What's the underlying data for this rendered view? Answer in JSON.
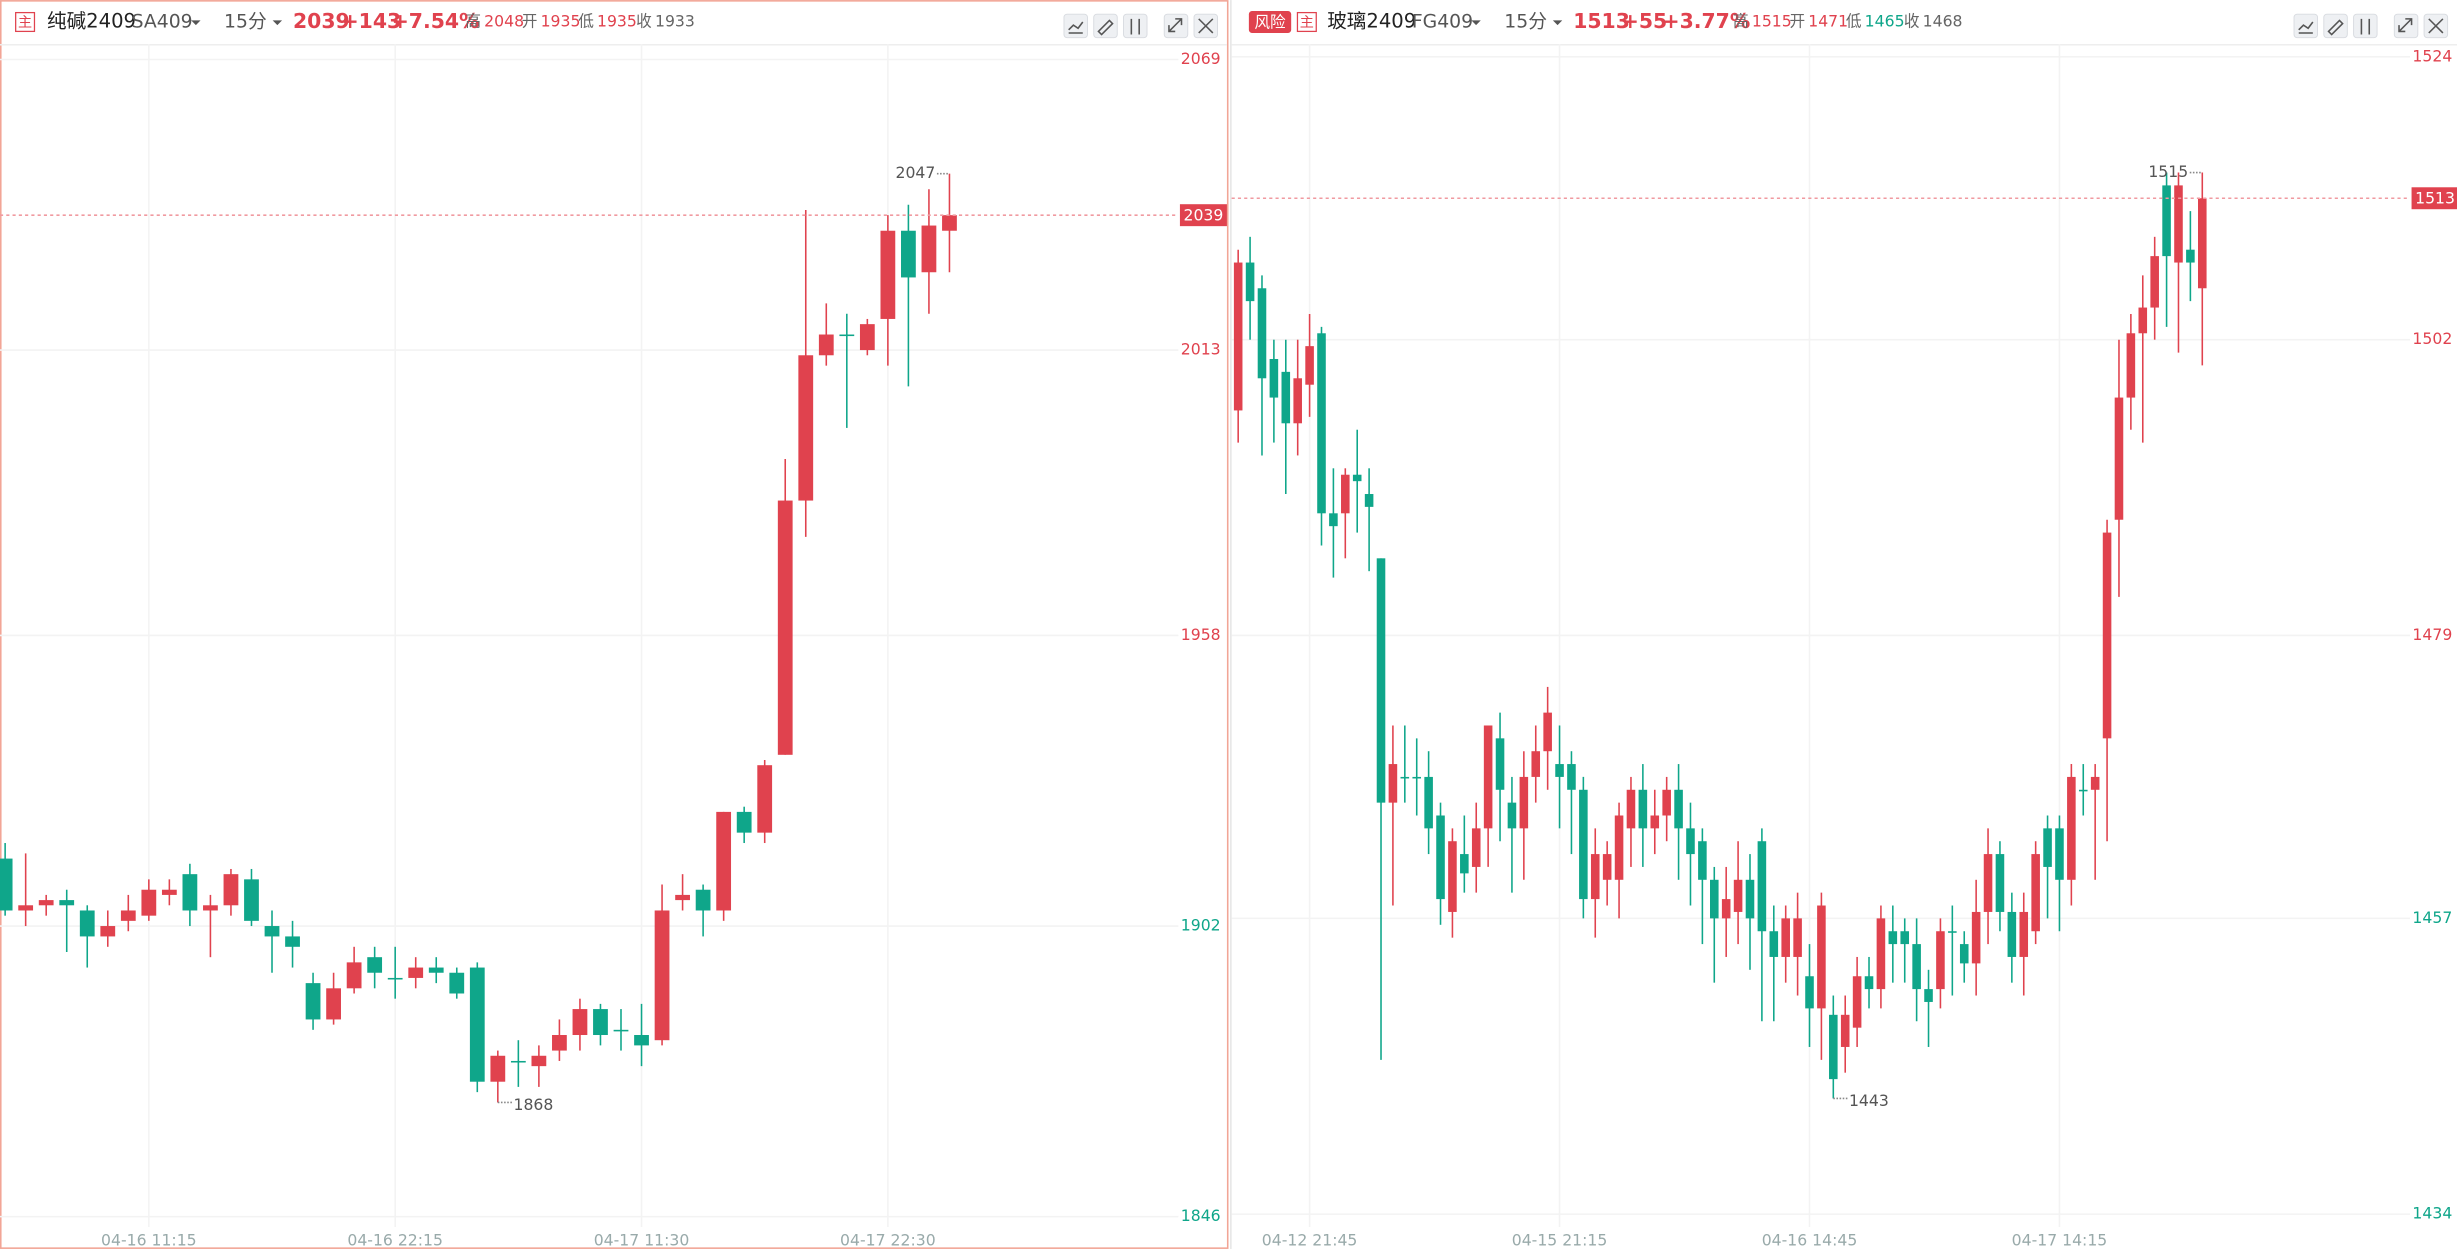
{
  "chart_data": [
    {
      "type": "candlestick",
      "header": {
        "tag": "主",
        "name": "纯碱2409",
        "code": "SA409",
        "period": "15分",
        "last": 2039,
        "change": "+143",
        "change_pct": "+7.54%",
        "stats": [
          {
            "label": "高",
            "value": 2048
          },
          {
            "label": "开",
            "value": 1935
          },
          {
            "label": "低",
            "value": 1935
          },
          {
            "label": "收",
            "value": 1933
          }
        ]
      },
      "categories": [
        null,
        null,
        null,
        null,
        null,
        null,
        null,
        "04-16 11:15",
        null,
        null,
        null,
        null,
        null,
        null,
        null,
        null,
        null,
        null,
        null,
        "04-16 22:15",
        null,
        null,
        null,
        null,
        null,
        null,
        null,
        null,
        null,
        null,
        null,
        "04-17 11:30",
        null,
        null,
        null,
        null,
        null,
        null,
        null,
        null,
        null,
        null,
        null,
        "04-17 22:30",
        null,
        null,
        null
      ],
      "open": [
        1915,
        1905,
        1906,
        1907,
        1905,
        1900,
        1903,
        1904,
        1908,
        1912,
        1905,
        1906,
        1911,
        1902,
        1900,
        1891,
        1884,
        1890,
        1896,
        1892,
        1892,
        1894,
        1893,
        1894,
        1872,
        1876,
        1875,
        1878,
        1881,
        1886,
        1882,
        1881,
        1880,
        1907,
        1909,
        1905,
        1924,
        1920,
        1935,
        1984,
        2012,
        2016,
        2013,
        2019,
        2036,
        2028,
        2036
      ],
      "high": [
        1918,
        1916,
        1908,
        1909,
        1906,
        1905,
        1908,
        1911,
        1911,
        1914,
        1908,
        1913,
        1913,
        1905,
        1903,
        1893,
        1893,
        1898,
        1898,
        1898,
        1896,
        1896,
        1894,
        1895,
        1878,
        1880,
        1879,
        1884,
        1888,
        1887,
        1886,
        1887,
        1910,
        1912,
        1910,
        1924,
        1925,
        1934,
        1992,
        2040,
        2022,
        2020,
        2019,
        2039,
        2041,
        2044,
        2047
      ],
      "low": [
        1904,
        1902,
        1904,
        1897,
        1894,
        1898,
        1901,
        1903,
        1906,
        1902,
        1896,
        1904,
        1902,
        1893,
        1894,
        1882,
        1883,
        1889,
        1890,
        1888,
        1890,
        1891,
        1888,
        1870,
        1868,
        1871,
        1871,
        1876,
        1878,
        1879,
        1878,
        1875,
        1879,
        1905,
        1900,
        1903,
        1918,
        1918,
        1935,
        1977,
        2010,
        1998,
        2012,
        2010,
        2006,
        2020,
        2028
      ],
      "close": [
        1905,
        1906,
        1907,
        1906,
        1900,
        1902,
        1905,
        1909,
        1909,
        1905,
        1906,
        1912,
        1903,
        1900,
        1898,
        1884,
        1890,
        1895,
        1893,
        1892,
        1894,
        1893,
        1889,
        1872,
        1877,
        1876,
        1877,
        1881,
        1886,
        1881,
        1882,
        1879,
        1905,
        1908,
        1905,
        1924,
        1920,
        1933,
        1984,
        2012,
        2016,
        2016,
        2018,
        2036,
        2027,
        2037,
        2039
      ],
      "ylim": [
        1844,
        2072
      ],
      "yticks": [
        1846,
        1902,
        1958,
        2013,
        2069
      ],
      "grid": true,
      "high_mark": 2047,
      "low_mark": 1868,
      "up_color": "#e0424e",
      "down_color": "#0fa68a"
    },
    {
      "type": "candlestick",
      "header": {
        "badge": "风险",
        "tag": "主",
        "name": "玻璃2409",
        "code": "FG409",
        "period": "15分",
        "last": 1513,
        "change": "+55",
        "change_pct": "+3.77%",
        "stats": [
          {
            "label": "高",
            "value": 1515
          },
          {
            "label": "开",
            "value": 1471
          },
          {
            "label": "低",
            "value": 1465
          },
          {
            "label": "收",
            "value": 1468
          }
        ]
      },
      "categories": [
        null,
        null,
        null,
        null,
        null,
        null,
        "04-12 21:45",
        null,
        null,
        null,
        null,
        null,
        null,
        null,
        null,
        null,
        null,
        null,
        null,
        null,
        null,
        null,
        null,
        null,
        null,
        null,
        null,
        "04-15 21:15",
        null,
        null,
        null,
        null,
        null,
        null,
        null,
        null,
        null,
        null,
        null,
        null,
        null,
        null,
        null,
        null,
        null,
        null,
        null,
        null,
        "04-16 14:45",
        null,
        null,
        null,
        null,
        null,
        null,
        null,
        null,
        null,
        null,
        null,
        null,
        null,
        null,
        null,
        null,
        null,
        null,
        null,
        null,
        "04-17 14:15",
        null,
        null,
        null,
        null,
        null,
        null,
        null,
        null,
        null,
        null,
        null,
        null
      ],
      "open": [
        1496.5,
        1508,
        1506,
        1500.5,
        1499.5,
        1495.5,
        1498.5,
        1502.5,
        1488.5,
        1488.5,
        1491.5,
        1490,
        1485,
        1466,
        1468,
        1468,
        1468,
        1465,
        1457.5,
        1462,
        1461,
        1464,
        1471,
        1466,
        1464,
        1468,
        1470,
        1469,
        1469,
        1467,
        1458.5,
        1460,
        1460,
        1464,
        1467,
        1464,
        1465,
        1467,
        1464,
        1463,
        1460,
        1457,
        1457.5,
        1460,
        1463,
        1456,
        1454,
        1454,
        1452.5,
        1450,
        1449.5,
        1447,
        1448.5,
        1452.5,
        1451.5,
        1456,
        1456,
        1455,
        1451.5,
        1451.5,
        1456,
        1455,
        1453.5,
        1457.5,
        1462,
        1457.5,
        1454,
        1456,
        1464,
        1464,
        1460,
        1467,
        1467,
        1471,
        1488,
        1497.5,
        1502.5,
        1504.5,
        1514,
        1508,
        1509,
        1506
      ],
      "high": [
        1509,
        1510,
        1507,
        1502,
        1502,
        1502,
        1504,
        1503,
        1492,
        1492,
        1495,
        1492,
        1485,
        1472,
        1472,
        1471,
        1470,
        1466,
        1464,
        1465,
        1466,
        1472,
        1473,
        1468,
        1470,
        1472,
        1475,
        1472,
        1470,
        1468,
        1464,
        1463,
        1466,
        1468,
        1469,
        1467,
        1468,
        1469,
        1466,
        1464,
        1461,
        1461,
        1463,
        1462,
        1464,
        1458,
        1458,
        1459,
        1455,
        1459,
        1451,
        1451,
        1454,
        1454,
        1458,
        1458,
        1457,
        1457,
        1453,
        1457,
        1458,
        1456,
        1460,
        1464,
        1463,
        1459,
        1459,
        1463,
        1465,
        1465,
        1469,
        1469,
        1469,
        1488,
        1502,
        1504,
        1507,
        1510,
        1515,
        1515,
        1512,
        1515
      ],
      "low": [
        1494,
        1502,
        1493,
        1494,
        1490,
        1493,
        1496,
        1486,
        1483.5,
        1485,
        1487,
        1484,
        1446,
        1458,
        1466,
        1465,
        1462,
        1456.5,
        1455.5,
        1459,
        1459,
        1461,
        1463,
        1459,
        1460,
        1466,
        1467,
        1464,
        1462,
        1457,
        1455.5,
        1458,
        1457,
        1461,
        1461,
        1462,
        1463,
        1460,
        1458,
        1455,
        1452,
        1454,
        1455,
        1453,
        1449,
        1449,
        1452,
        1451,
        1447,
        1446,
        1443,
        1445,
        1447,
        1450,
        1450,
        1452,
        1452,
        1449,
        1447,
        1450,
        1451,
        1452,
        1451,
        1455,
        1456,
        1452,
        1451,
        1455,
        1457,
        1456,
        1458,
        1465,
        1460,
        1463,
        1482,
        1495,
        1494,
        1502,
        1503,
        1501,
        1505,
        1500
      ],
      "close": [
        1508,
        1505,
        1499,
        1497.5,
        1495.5,
        1499,
        1501.5,
        1488.5,
        1487.5,
        1491.5,
        1491,
        1489,
        1466,
        1469,
        1468,
        1468,
        1464,
        1458.5,
        1463,
        1460.5,
        1464,
        1472,
        1467,
        1464,
        1468,
        1470,
        1473,
        1468,
        1467,
        1458.5,
        1462,
        1462,
        1465,
        1467,
        1464,
        1465,
        1467,
        1464,
        1462,
        1460,
        1457,
        1458.5,
        1460,
        1457,
        1456,
        1454,
        1457,
        1457,
        1450,
        1458,
        1444.5,
        1449.5,
        1452.5,
        1451.5,
        1457,
        1455,
        1455,
        1451.5,
        1450.5,
        1456,
        1456,
        1453.5,
        1457.5,
        1462,
        1457.5,
        1454,
        1457.5,
        1462,
        1461,
        1460,
        1468,
        1467,
        1468,
        1487,
        1497.5,
        1502.5,
        1504.5,
        1508.5,
        1508.5,
        1514,
        1508,
        1513
      ],
      "ylim": [
        1433,
        1525
      ],
      "yticks": [
        1434,
        1457,
        1479,
        1502,
        1524
      ],
      "grid": true,
      "high_mark": 1515,
      "low_mark": 1443,
      "up_color": "#e0424e",
      "down_color": "#0fa68a"
    }
  ]
}
